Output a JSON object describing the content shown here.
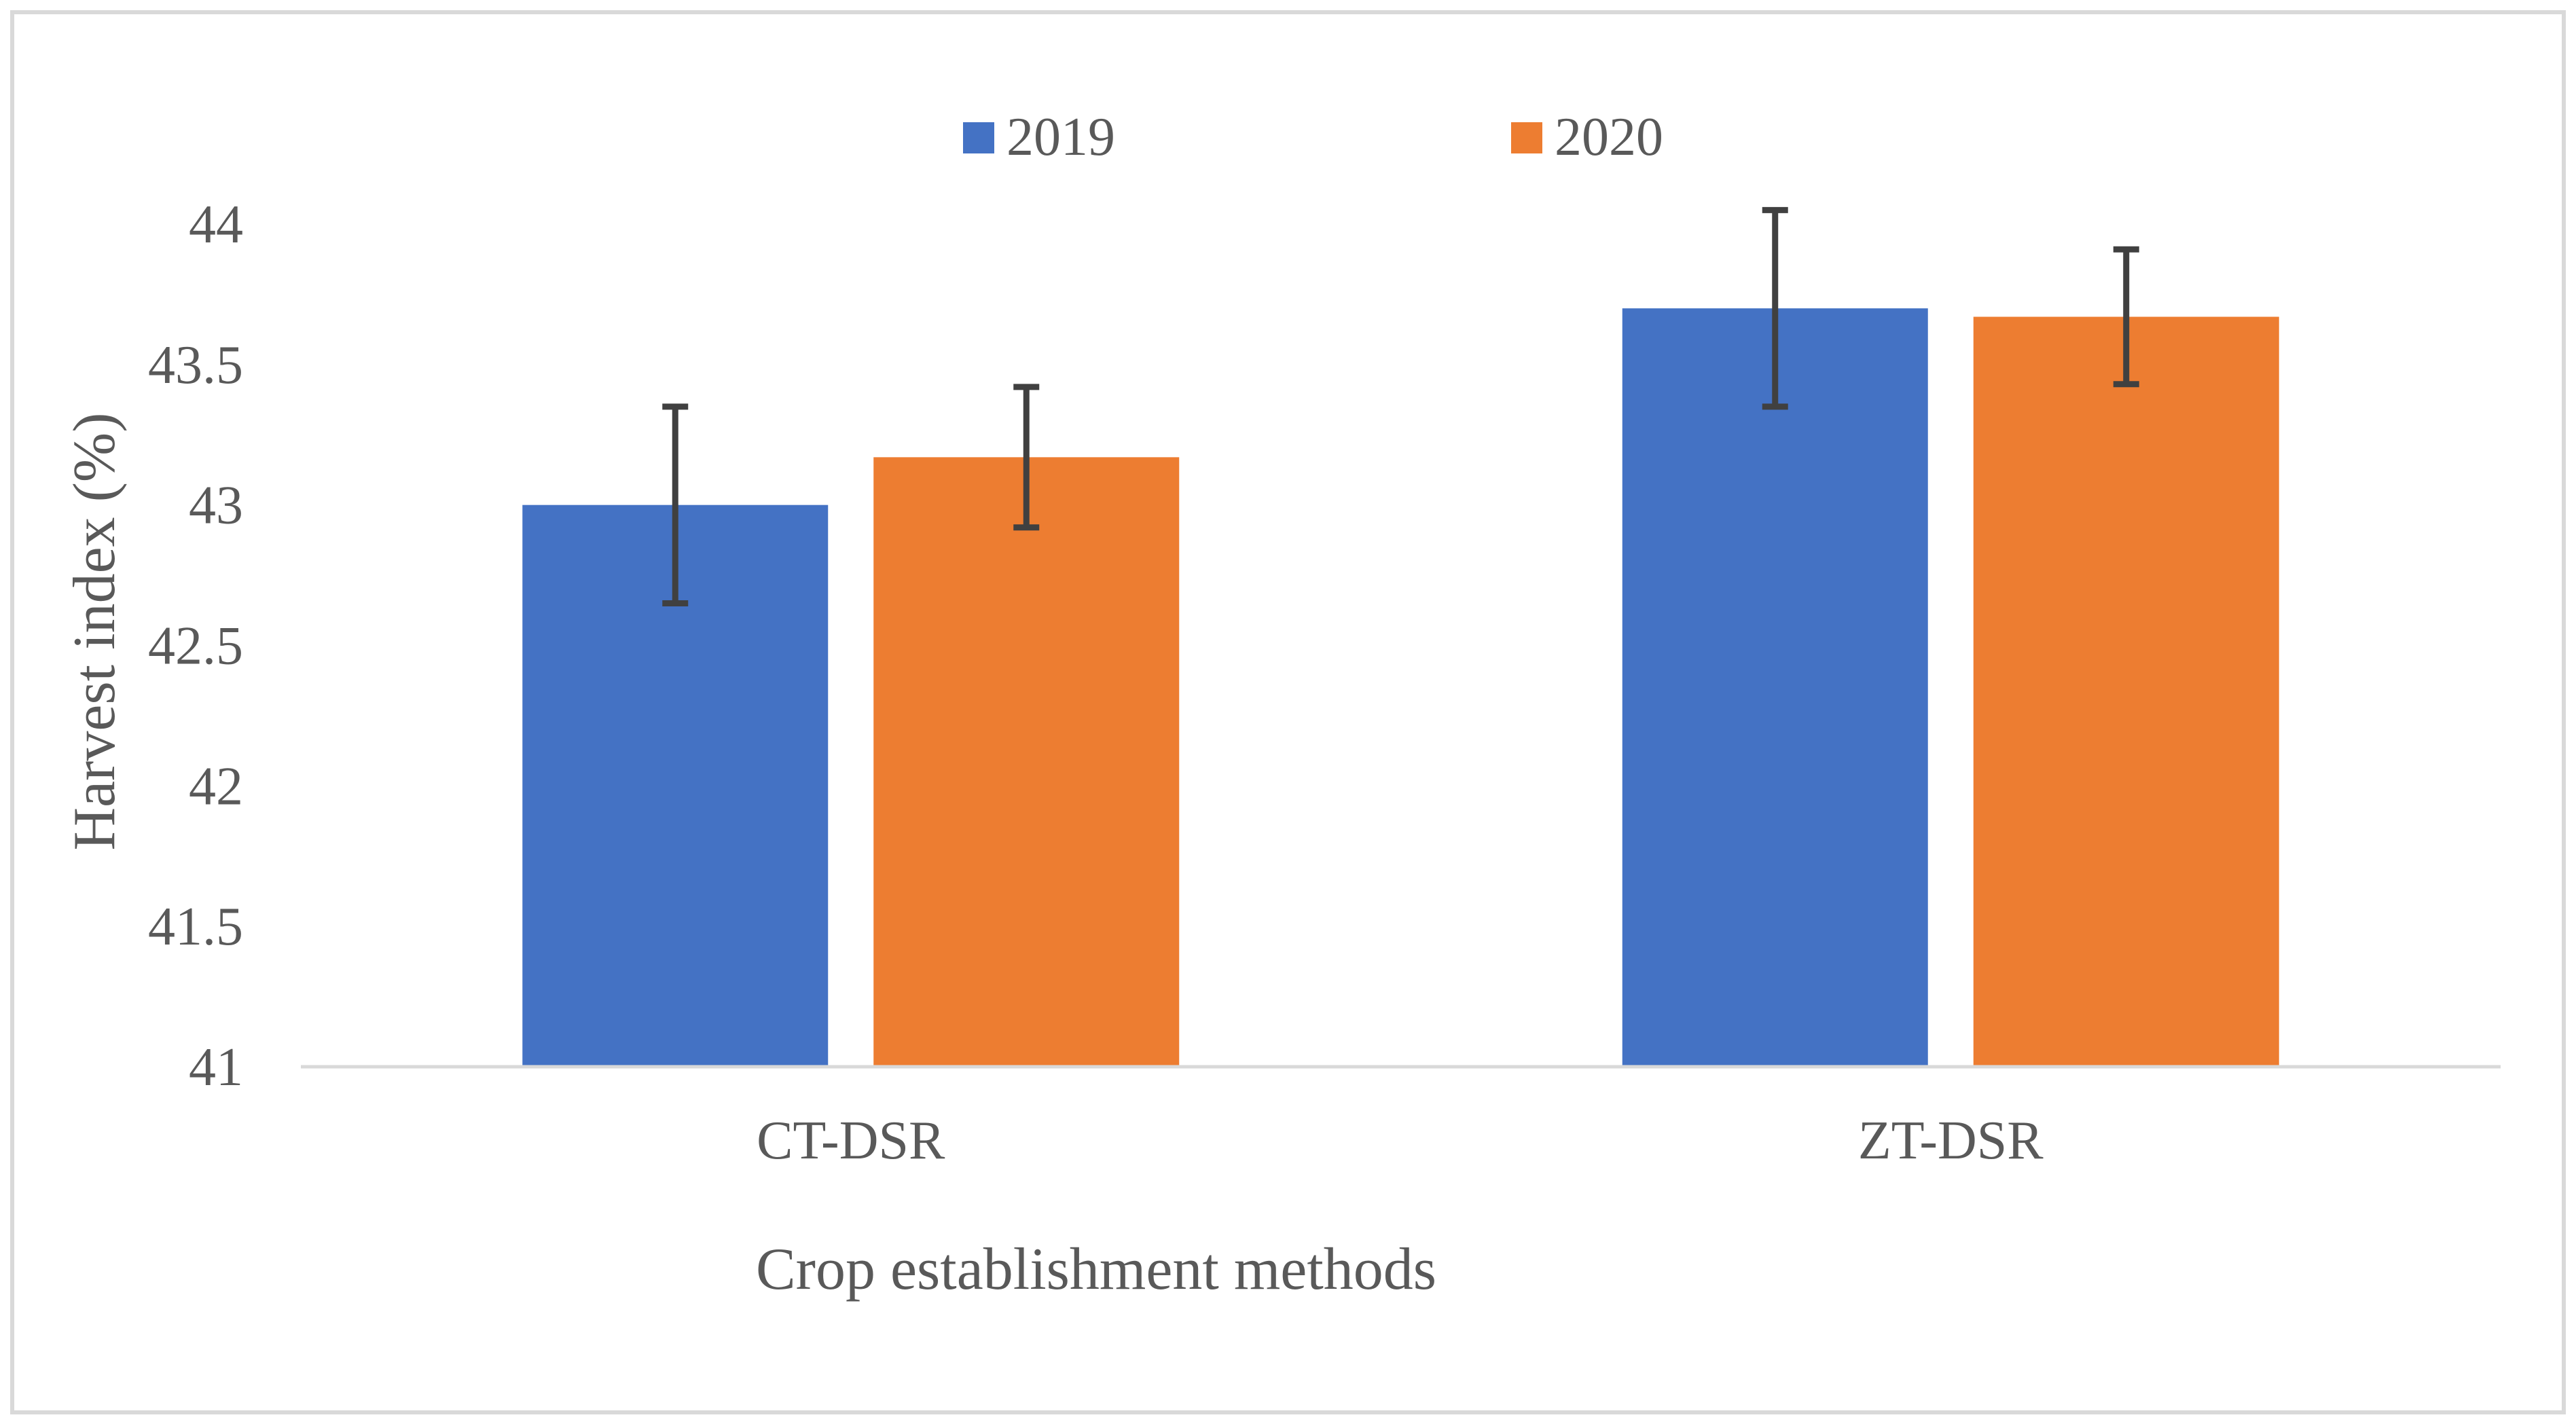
{
  "chart_data": {
    "type": "bar",
    "title": "",
    "xlabel": "Crop establishment  methods",
    "ylabel": "Harvest  index  (%)",
    "categories": [
      "CT-DSR",
      "ZT-DSR"
    ],
    "ylim": [
      41,
      44
    ],
    "yticks": [
      41,
      41.5,
      42,
      42.5,
      43,
      43.5,
      44
    ],
    "ytick_labels": [
      "41",
      "41.5",
      "42",
      "42.5",
      "43",
      "43.5",
      "44"
    ],
    "grid": false,
    "legend_position": "top-center",
    "series": [
      {
        "name": "2019",
        "color": "#4472C4",
        "values": [
          43.0,
          43.7
        ],
        "errors": [
          0.35,
          0.35
        ]
      },
      {
        "name": "2020",
        "color": "#ED7D31",
        "values": [
          43.17,
          43.67
        ],
        "errors": [
          0.25,
          0.24
        ]
      }
    ],
    "colors": {
      "axis": "#D9D9D9",
      "text": "#595959",
      "error_bar": "#404040",
      "frame": "#D9D9D9"
    }
  }
}
